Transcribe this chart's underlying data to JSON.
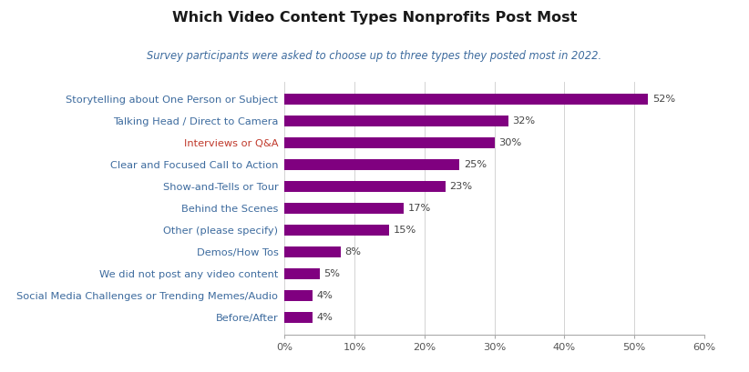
{
  "title": "Which Video Content Types Nonprofits Post Most",
  "subtitle": "Survey participants were asked to choose up to three types they posted most in 2022.",
  "categories": [
    "Before/After",
    "Social Media Challenges or Trending Memes/Audio",
    "We did not post any video content",
    "Demos/How Tos",
    "Other (please specify)",
    "Behind the Scenes",
    "Show-and-Tells or Tour",
    "Clear and Focused Call to Action",
    "Interviews or Q&A",
    "Talking Head / Direct to Camera",
    "Storytelling about One Person or Subject"
  ],
  "values": [
    4,
    4,
    5,
    8,
    15,
    17,
    23,
    25,
    30,
    32,
    52
  ],
  "bar_color": "#800080",
  "label_color": "#3d6b9e",
  "interviews_color": "#c0392b",
  "title_color": "#1a1a1a",
  "subtitle_color": "#3d6b9e",
  "xlim": [
    0,
    60
  ],
  "xtick_labels": [
    "0%",
    "10%",
    "20%",
    "30%",
    "40%",
    "50%",
    "60%"
  ],
  "xtick_values": [
    0,
    10,
    20,
    30,
    40,
    50,
    60
  ],
  "background_color": "#ffffff"
}
